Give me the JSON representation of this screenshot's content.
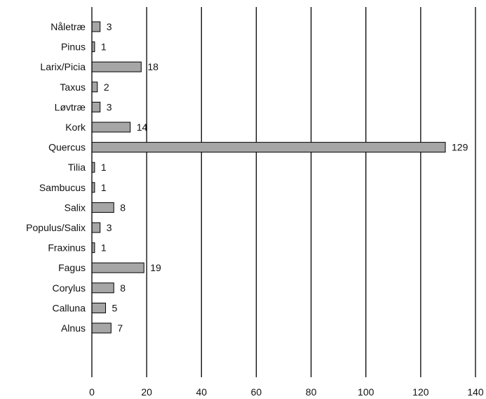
{
  "chart_data": {
    "type": "bar",
    "orientation": "horizontal",
    "title": "",
    "xlabel": "",
    "ylabel": "",
    "xlim": [
      0,
      140
    ],
    "xticks": [
      0,
      20,
      40,
      60,
      80,
      100,
      120,
      140
    ],
    "xtick_labels": [
      "0",
      "20",
      "40",
      "60",
      "80",
      "100",
      "120",
      "140"
    ],
    "grid": "vertical",
    "legend": "none",
    "bar_color": "#a6a6a6",
    "categories": [
      "Nåletræ",
      "Pinus",
      "Larix/Picia",
      "Taxus",
      "Løvtræ",
      "Kork",
      "Quercus",
      "Tilia",
      "Sambucus",
      "Salix",
      "Populus/Salix",
      "Fraxinus",
      "Fagus",
      "Corylus",
      "Calluna",
      "Alnus"
    ],
    "values": [
      3,
      1,
      18,
      2,
      3,
      14,
      129,
      1,
      1,
      8,
      3,
      1,
      19,
      8,
      5,
      7
    ],
    "value_labels": [
      "3",
      "1",
      "18",
      "2",
      "3",
      "14",
      "129",
      "1",
      "1",
      "8",
      "3",
      "1",
      "19",
      "8",
      "5",
      "7"
    ]
  }
}
